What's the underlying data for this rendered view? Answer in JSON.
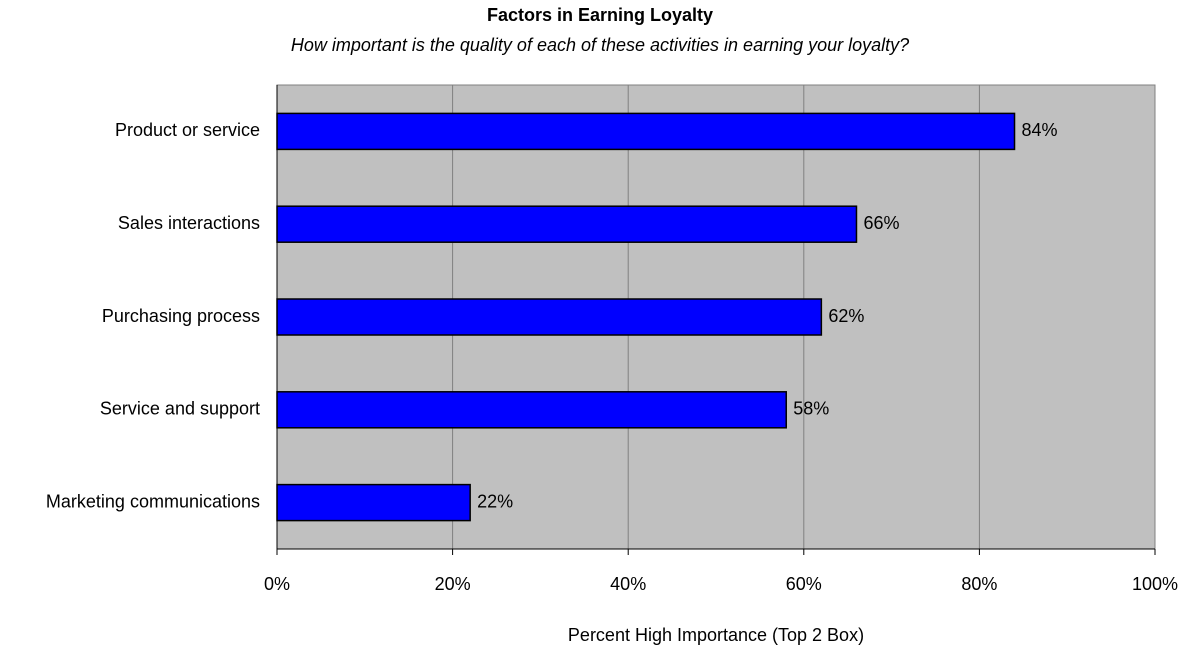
{
  "chart_data": {
    "type": "bar",
    "orientation": "horizontal",
    "title": "Factors in Earning Loyalty",
    "subtitle": "How important is the quality of each of these activities in earning your loyalty?",
    "x_label": "Percent High Importance (Top 2 Box)",
    "categories": [
      "Product or service",
      "Sales interactions",
      "Purchasing process",
      "Service and support",
      "Marketing communications"
    ],
    "values": [
      84,
      66,
      62,
      58,
      22
    ],
    "value_labels": [
      "84%",
      "66%",
      "62%",
      "58%",
      "22%"
    ],
    "color": "#0000ff",
    "xlim": [
      0,
      100
    ],
    "xticks": [
      {
        "value": 0,
        "label": "0%"
      },
      {
        "value": 20,
        "label": "20%"
      },
      {
        "value": 40,
        "label": "40%"
      },
      {
        "value": 60,
        "label": "60%"
      },
      {
        "value": 80,
        "label": "80%"
      },
      {
        "value": 100,
        "label": "100%"
      }
    ],
    "grid": true
  }
}
